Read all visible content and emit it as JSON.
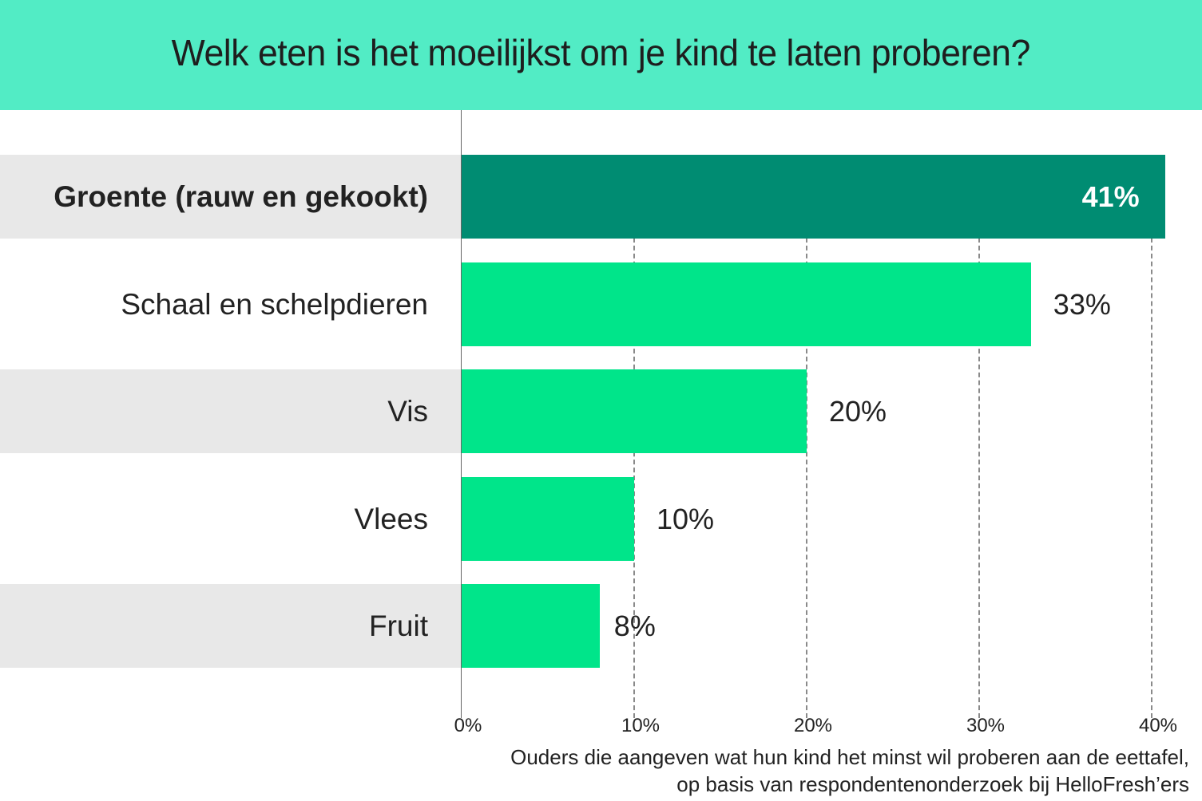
{
  "header": {
    "title": "Welk eten is het moeilijkst om je kind te laten proberen?",
    "background_color": "#52ecc5"
  },
  "chart_data": {
    "type": "bar",
    "orientation": "horizontal",
    "title": "Welk eten is het moeilijkst om je kind te laten proberen?",
    "categories": [
      "Groente (rauw en gekookt)",
      "Schaal en schelpdieren",
      "Vis",
      "Vlees",
      "Fruit"
    ],
    "values": [
      41,
      33,
      20,
      10,
      8
    ],
    "value_labels": [
      "41%",
      "33%",
      "20%",
      "10%",
      "8%"
    ],
    "xlabel": "Ouders die aangeven wat hun kind het minst wil proberen aan de eettafel, op basis van respondentenonderzoek bij HelloFresh’ers",
    "ylabel": "",
    "xlim": [
      0,
      41
    ],
    "x_ticks": [
      "0%",
      "10%",
      "20%",
      "30%",
      "40%"
    ],
    "grid": "vertical dashed",
    "highlight_index": 0,
    "colors": {
      "highlight_bar": "#008c72",
      "bar": "#00e58a",
      "row_band": "#e8e8e8"
    }
  },
  "footnote": {
    "line1": "Ouders die aangeven wat hun kind het minst wil proberen aan de eettafel,",
    "line2": "op basis van respondentenonderzoek bij HelloFresh’ers"
  }
}
